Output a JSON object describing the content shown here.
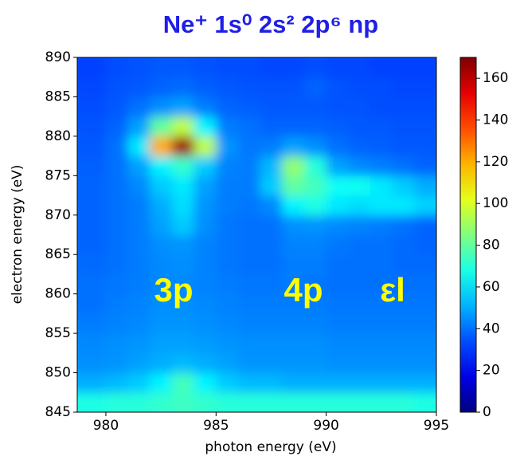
{
  "chart_data": {
    "type": "heatmap",
    "title": "Ne⁺ 1s⁰ 2s² 2p⁶ np",
    "xlabel": "photon energy (eV)",
    "ylabel": "electron energy (eV)",
    "xbins": [
      978.7,
      980,
      981,
      982,
      983,
      984,
      985,
      986,
      987,
      988,
      989,
      990,
      991,
      992,
      993,
      994,
      995
    ],
    "ybins": [
      845,
      847.5,
      850,
      852.5,
      855,
      857.5,
      860,
      862.5,
      865,
      867.5,
      870,
      872.5,
      875,
      877.5,
      880,
      882.5,
      885,
      887.5,
      890
    ],
    "values": [
      [
        68,
        70,
        70,
        72,
        74,
        72,
        70,
        70,
        70,
        70,
        70,
        70,
        70,
        70,
        70,
        68
      ],
      [
        50,
        52,
        55,
        62,
        75,
        62,
        55,
        52,
        52,
        50,
        50,
        50,
        50,
        50,
        50,
        50
      ],
      [
        45,
        46,
        48,
        50,
        52,
        50,
        48,
        46,
        46,
        46,
        46,
        45,
        45,
        45,
        45,
        45
      ],
      [
        44,
        45,
        46,
        48,
        48,
        47,
        46,
        45,
        45,
        45,
        45,
        44,
        44,
        44,
        44,
        44
      ],
      [
        42,
        43,
        44,
        46,
        46,
        45,
        44,
        43,
        43,
        43,
        43,
        42,
        42,
        42,
        42,
        42
      ],
      [
        40,
        42,
        43,
        45,
        45,
        44,
        43,
        42,
        42,
        42,
        42,
        41,
        41,
        41,
        41,
        41
      ],
      [
        40,
        41,
        42,
        44,
        44,
        43,
        42,
        41,
        41,
        42,
        41,
        40,
        40,
        40,
        40,
        40
      ],
      [
        39,
        40,
        42,
        44,
        45,
        43,
        41,
        40,
        40,
        42,
        42,
        40,
        40,
        40,
        39,
        39
      ],
      [
        38,
        40,
        42,
        45,
        46,
        43,
        41,
        40,
        40,
        43,
        43,
        41,
        40,
        40,
        39,
        38
      ],
      [
        38,
        40,
        42,
        48,
        55,
        45,
        41,
        40,
        40,
        45,
        46,
        44,
        43,
        42,
        40,
        38
      ],
      [
        38,
        40,
        42,
        50,
        58,
        46,
        42,
        41,
        44,
        62,
        68,
        60,
        58,
        60,
        60,
        56
      ],
      [
        38,
        40,
        44,
        55,
        60,
        48,
        42,
        42,
        55,
        80,
        75,
        65,
        66,
        60,
        55,
        50
      ],
      [
        37,
        40,
        48,
        62,
        72,
        55,
        43,
        42,
        52,
        88,
        70,
        48,
        44,
        42,
        40,
        38
      ],
      [
        36,
        40,
        60,
        120,
        165,
        95,
        46,
        41,
        42,
        48,
        45,
        40,
        38,
        37,
        36,
        36
      ],
      [
        35,
        38,
        48,
        80,
        95,
        62,
        42,
        40,
        38,
        38,
        38,
        37,
        36,
        36,
        35,
        35
      ],
      [
        34,
        36,
        40,
        45,
        48,
        42,
        38,
        37,
        36,
        36,
        36,
        35,
        35,
        34,
        34,
        34
      ],
      [
        33,
        35,
        36,
        38,
        39,
        37,
        36,
        35,
        35,
        35,
        38,
        35,
        34,
        34,
        33,
        33
      ],
      [
        32,
        34,
        35,
        36,
        36,
        35,
        34,
        34,
        33,
        33,
        34,
        33,
        33,
        32,
        32,
        32
      ]
    ],
    "xlim": [
      978.7,
      995
    ],
    "xticks": [
      980,
      985,
      990,
      995
    ],
    "ylim": [
      845,
      890
    ],
    "yticks": [
      845,
      850,
      855,
      860,
      865,
      870,
      875,
      880,
      885,
      890
    ],
    "colormap": "jet",
    "clim": [
      0,
      170
    ],
    "cticks": [
      0,
      20,
      40,
      60,
      80,
      100,
      120,
      140,
      160
    ],
    "annotations": [
      "3p",
      "4p",
      "εl"
    ]
  }
}
